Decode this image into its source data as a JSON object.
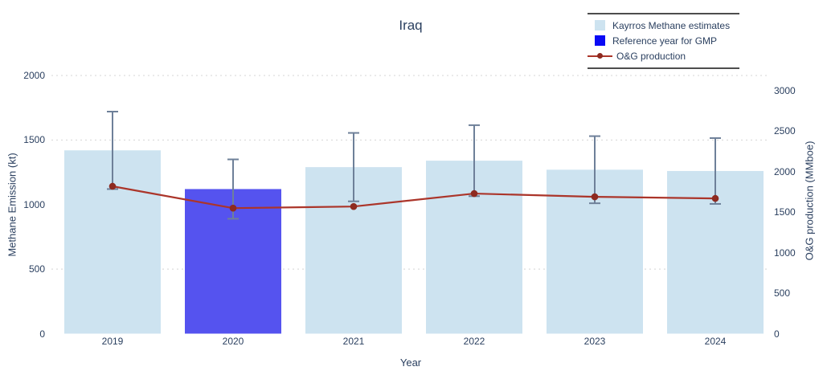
{
  "chart_data": {
    "type": "bar+line",
    "title": "Iraq",
    "xlabel": "Year",
    "categories": [
      "2019",
      "2020",
      "2021",
      "2022",
      "2023",
      "2024"
    ],
    "left_axis": {
      "label": "Methane Emission (kt)",
      "ticks": [
        "0",
        "500",
        "1000",
        "1500",
        "2000"
      ],
      "tick_values": [
        0,
        500,
        1000,
        1500,
        2000
      ],
      "range": [
        0,
        2080
      ]
    },
    "right_axis": {
      "label": "O&G production (MMboe)",
      "ticks": [
        "0",
        "500",
        "1000",
        "1500",
        "2000",
        "2500",
        "3000"
      ],
      "tick_values": [
        0,
        500,
        1000,
        1500,
        2000,
        2500,
        3000
      ],
      "range": [
        0,
        3010
      ]
    },
    "gridlines_left_values": [
      500,
      1500,
      2000
    ],
    "grid_style": "dashed",
    "legend_position": "top-right",
    "series": [
      {
        "name": "Kayrros Methane estimates",
        "type": "bar",
        "axis": "left",
        "color": "#cde3f0",
        "values": [
          1420,
          1120,
          1290,
          1340,
          1270,
          1260
        ],
        "error_plus_minus": [
          300,
          230,
          265,
          275,
          260,
          255
        ]
      },
      {
        "name": "Reference year for GMP",
        "type": "bar-highlight",
        "axis": "left",
        "legend_color": "#0a0af5",
        "bar_color": "#5553ef",
        "year": "2020",
        "value": 1120
      },
      {
        "name": "O&G production",
        "type": "line",
        "axis": "right",
        "color": "#ab352a",
        "marker_color": "#8e2a20",
        "values": [
          1820,
          1550,
          1570,
          1730,
          1690,
          1670
        ]
      }
    ],
    "error_bar_color": "#6e8099",
    "text_color": "#2a3f5f",
    "grid_color": "#d4d4d4"
  }
}
